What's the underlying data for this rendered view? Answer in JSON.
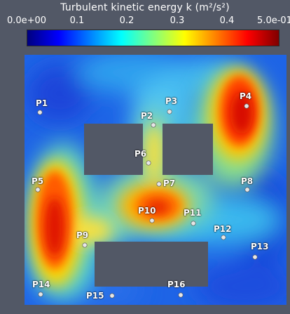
{
  "colorbar": {
    "title": "Turbulent kinetic energy k (m²/s²)",
    "ticks": [
      {
        "label": "0.0e+00",
        "value": 0.0
      },
      {
        "label": "0.1",
        "value": 0.1
      },
      {
        "label": "0.2",
        "value": 0.2
      },
      {
        "label": "0.3",
        "value": 0.3
      },
      {
        "label": "0.4",
        "value": 0.4
      },
      {
        "label": "5.0e-01",
        "value": 0.5
      }
    ],
    "range": [
      0.0,
      0.5
    ],
    "colormap": [
      "#00007f",
      "#0000ff",
      "#0080ff",
      "#00ffff",
      "#80ff80",
      "#ffff00",
      "#ff8000",
      "#ff0000",
      "#7f0000"
    ]
  },
  "colors": {
    "background": "#525866",
    "obstacle": "#525866",
    "probe": "#e6e6e6"
  },
  "probes": [
    {
      "name": "P1"
    },
    {
      "name": "P2"
    },
    {
      "name": "P3"
    },
    {
      "name": "P4"
    },
    {
      "name": "P5"
    },
    {
      "name": "P6"
    },
    {
      "name": "P7"
    },
    {
      "name": "P8"
    },
    {
      "name": "P9"
    },
    {
      "name": "P10"
    },
    {
      "name": "P11"
    },
    {
      "name": "P12"
    },
    {
      "name": "P13"
    },
    {
      "name": "P14"
    },
    {
      "name": "P15"
    },
    {
      "name": "P16"
    }
  ]
}
